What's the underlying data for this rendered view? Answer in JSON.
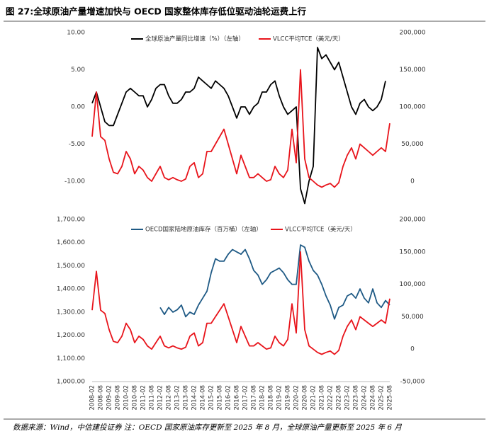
{
  "header": {
    "title": "图 27:全球原油产量增速加快与 OECD 国家整体库存低位驱动油轮运费上行"
  },
  "footer": {
    "note": "数据来源：Wind，中信建投证券 注：OECD 国家原油库存更新至 2025 年 8 月，全球原油产量更新至 2025 年 6 月"
  },
  "chart_data": [
    {
      "type": "line",
      "ylim": [
        -14,
        10
      ],
      "yticks": [
        {
          "value": 10,
          "label": "10.00"
        },
        {
          "value": 5,
          "label": "5.00"
        },
        {
          "value": 0,
          "label": "0.00"
        },
        {
          "value": -5,
          "label": "-5.00"
        },
        {
          "value": -10,
          "label": "-10.00"
        }
      ],
      "y2lim": [
        -40000,
        200000
      ],
      "y2ticks": [
        {
          "value": 200000,
          "label": "200,000"
        },
        {
          "value": 150000,
          "label": "150,000"
        },
        {
          "value": 100000,
          "label": "100,000"
        },
        {
          "value": 50000,
          "label": "50,000"
        },
        0
      ],
      "series": [
        {
          "name": "全球原油产量同比增速（%）（左轴）",
          "color": "#000000",
          "values": [
            0.5,
            2,
            0,
            -2,
            -2.5,
            -2.5,
            -1,
            0.5,
            2,
            2.5,
            2,
            1.5,
            1.5,
            0,
            1,
            2.5,
            3,
            3,
            1.5,
            0.5,
            0.5,
            1,
            2,
            2,
            2.5,
            4,
            3.5,
            3,
            2.5,
            3.5,
            3,
            2.5,
            1.5,
            0,
            -1.5,
            0,
            0,
            -1,
            0,
            0.5,
            2,
            2,
            3,
            3.5,
            1.5,
            0,
            -1,
            -0.5,
            0,
            -11,
            -13,
            -10,
            -8,
            8,
            6.5,
            7,
            6,
            5,
            6,
            4,
            2,
            0,
            -1,
            0.5,
            1,
            0,
            -0.5,
            0,
            1,
            3.5,
            null
          ]
        },
        {
          "name": "VLCC平均TCE（美元/天）",
          "color": "#e8141b",
          "axis": "y2",
          "values": [
            60000,
            120000,
            60000,
            55000,
            30000,
            12000,
            10000,
            20000,
            40000,
            30000,
            10000,
            20000,
            15000,
            5000,
            0,
            10000,
            20000,
            5000,
            2000,
            5000,
            2000,
            0,
            3000,
            20000,
            25000,
            5000,
            10000,
            40000,
            40000,
            50000,
            60000,
            70000,
            50000,
            30000,
            10000,
            35000,
            20000,
            5000,
            5000,
            10000,
            5000,
            0,
            2000,
            20000,
            10000,
            5000,
            15000,
            70000,
            25000,
            150000,
            30000,
            5000,
            0,
            -5000,
            -8000,
            -5000,
            -3000,
            -8000,
            -2000,
            20000,
            35000,
            45000,
            30000,
            50000,
            45000,
            40000,
            35000,
            40000,
            45000,
            40000,
            78000
          ]
        }
      ]
    },
    {
      "type": "line",
      "categories": [
        "2008-02",
        null,
        "2008-08",
        null,
        "2009-02",
        null,
        "2009-08",
        null,
        "2010-02",
        null,
        "2010-08",
        null,
        "2011-02",
        null,
        "2011-08",
        null,
        "2012-02",
        null,
        "2012-08",
        null,
        "2013-02",
        null,
        "2013-08",
        null,
        "2014-02",
        null,
        "2014-08",
        null,
        "2015-02",
        null,
        "2015-08",
        null,
        "2016-02",
        null,
        "2016-08",
        null,
        "2017-02",
        null,
        "2017-08",
        null,
        "2018-02",
        null,
        "2018-08",
        null,
        "2019-02",
        null,
        "2019-08",
        null,
        "2020-02",
        null,
        "2020-08",
        null,
        "2021-02",
        null,
        "2021-08",
        null,
        "2022-02",
        null,
        "2022-08",
        null,
        "2023-02",
        null,
        "2023-08",
        null,
        "2024-02",
        null,
        "2024-08",
        null,
        "2025-02",
        null,
        "2025-08"
      ],
      "ylim": [
        1000,
        1700
      ],
      "yticks": [
        {
          "value": 1700,
          "label": "1,700.00"
        },
        {
          "value": 1600,
          "label": "1,600.00"
        },
        {
          "value": 1500,
          "label": "1,500.00"
        },
        {
          "value": 1400,
          "label": "1,400.00"
        },
        {
          "value": 1300,
          "label": "1,300.00"
        },
        {
          "value": 1200,
          "label": "1,200.00"
        },
        {
          "value": 1100,
          "label": "1,100.00"
        },
        {
          "value": 1000,
          "label": "1,000.00"
        }
      ],
      "y2lim": [
        -50000,
        200000
      ],
      "y2ticks": [
        {
          "value": 200000,
          "label": "200,000"
        },
        {
          "value": 150000,
          "label": "150,000"
        },
        {
          "value": 100000,
          "label": "100,000"
        },
        {
          "value": 50000,
          "label": "50,000"
        },
        0,
        {
          "value": -50000,
          "label": "-50,000"
        }
      ],
      "series": [
        {
          "name": "OECD国家陆地原油库存（百万桶）（左轴）",
          "color": "#1f5a85",
          "values": [
            null,
            null,
            null,
            null,
            null,
            null,
            null,
            null,
            null,
            null,
            null,
            null,
            null,
            null,
            null,
            null,
            1320,
            1290,
            1320,
            1300,
            1310,
            1330,
            1280,
            1300,
            1290,
            1330,
            1360,
            1390,
            1470,
            1530,
            1520,
            1520,
            1550,
            1570,
            1560,
            1550,
            1570,
            1530,
            1480,
            1460,
            1420,
            1440,
            1470,
            1480,
            1490,
            1470,
            1440,
            1420,
            1420,
            1590,
            1580,
            1520,
            1480,
            1460,
            1420,
            1370,
            1330,
            1270,
            1320,
            1330,
            1370,
            1380,
            1360,
            1400,
            1360,
            1340,
            1400,
            1340,
            1320,
            1350,
            1330
          ]
        },
        {
          "name": "VLCC平均TCE（美元/天）",
          "color": "#e8141b",
          "axis": "y2",
          "values": [
            60000,
            120000,
            60000,
            55000,
            30000,
            12000,
            10000,
            20000,
            40000,
            30000,
            10000,
            20000,
            15000,
            5000,
            0,
            10000,
            20000,
            5000,
            2000,
            5000,
            2000,
            0,
            3000,
            20000,
            25000,
            5000,
            10000,
            40000,
            40000,
            50000,
            60000,
            70000,
            50000,
            30000,
            10000,
            35000,
            20000,
            5000,
            5000,
            10000,
            5000,
            0,
            2000,
            20000,
            10000,
            5000,
            15000,
            70000,
            25000,
            150000,
            30000,
            5000,
            0,
            -5000,
            -8000,
            -5000,
            -3000,
            -8000,
            -2000,
            20000,
            35000,
            45000,
            30000,
            50000,
            45000,
            40000,
            35000,
            40000,
            45000,
            40000,
            78000
          ]
        }
      ]
    }
  ]
}
